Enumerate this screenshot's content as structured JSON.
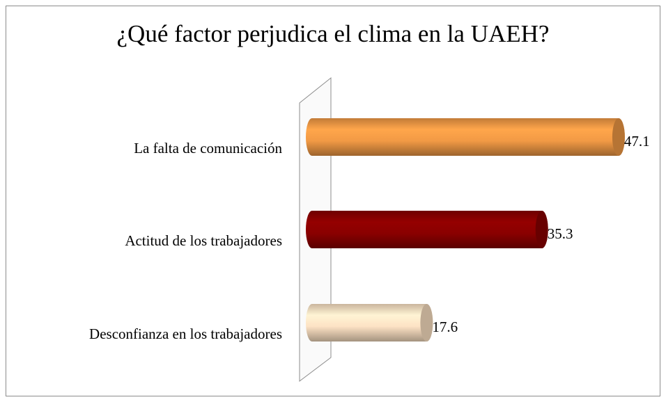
{
  "chart_data": {
    "type": "bar",
    "orientation": "horizontal",
    "title": "¿Qué factor perjudica el clima en la UAEH?",
    "categories": [
      "La falta de comunicación",
      "Actitud de los trabajadores",
      "Desconfianza en los trabajadores"
    ],
    "values": [
      47.1,
      35.3,
      17.6
    ],
    "colors": [
      "#f29a45",
      "#8a0000",
      "#fde2c4"
    ],
    "xlim": [
      0,
      50
    ]
  }
}
